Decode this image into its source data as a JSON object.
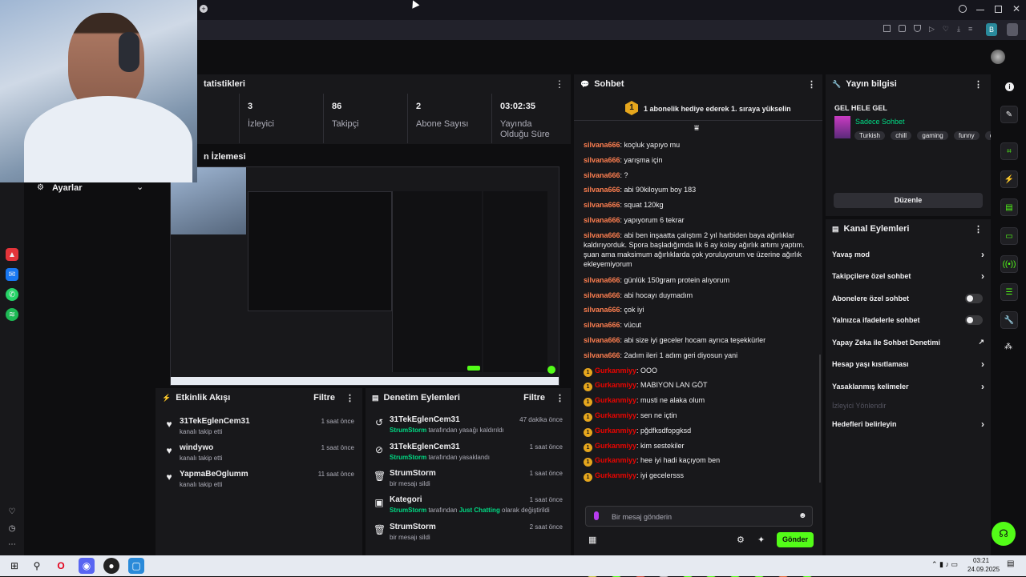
{
  "dashboard": {
    "stats_title": "tatistikleri",
    "stats": [
      {
        "value": "3",
        "label": "İzleyici"
      },
      {
        "value": "86",
        "label": "Takipçi"
      },
      {
        "value": "2",
        "label": "Abone Sayısı"
      },
      {
        "value": "03:02:35",
        "label": "Yayında Olduğu Süre"
      }
    ],
    "preview_title": "n İzlemesi",
    "settings_label": "Ayarlar",
    "activity": {
      "title": "Etkinlik Akışı",
      "filter": "Filtre",
      "items": [
        {
          "name": "31TekEglenCem31",
          "sub": "kanalı takip etti",
          "time": "1 saat önce"
        },
        {
          "name": "windywo",
          "sub": "kanalı takip etti",
          "time": "1 saat önce"
        },
        {
          "name": "YapmaBeOglumm",
          "sub": "kanalı takip etti",
          "time": "11 saat önce"
        }
      ]
    },
    "moderation": {
      "title": "Denetim Eylemleri",
      "filter": "Filtre",
      "items": [
        {
          "name": "31TekEglenCem31",
          "actor": "StrumStorm",
          "rest": " tarafından yasağı kaldırıldı",
          "time": "47 dakika önce"
        },
        {
          "name": "31TekEglenCem31",
          "actor": "StrumStorm",
          "rest": " tarafından yasaklandı",
          "time": "1 saat önce"
        },
        {
          "name": "StrumStorm",
          "actor": "",
          "rest": "bir mesajı sildi",
          "time": "1 saat önce"
        },
        {
          "name": "Kategori",
          "actor": "StrumStorm",
          "rest": " tarafından ",
          "extra": "Just Chatting",
          "rest2": " olarak değiştirildi",
          "time": "1 saat önce"
        },
        {
          "name": "StrumStorm",
          "actor": "",
          "rest": "bir mesajı sildi",
          "time": "2 saat önce"
        }
      ]
    }
  },
  "chat": {
    "title": "Sohbet",
    "hype": "1 abonelik hediye ederek 1. sıraya yükselin",
    "hype_rank": "1",
    "messages": [
      {
        "user": "silvana666",
        "text": ": koçluk yapıyo mu",
        "badge": false
      },
      {
        "user": "silvana666",
        "text": ": yarışma için",
        "badge": false
      },
      {
        "user": "silvana666",
        "text": ": ?",
        "badge": false
      },
      {
        "user": "silvana666",
        "text": ": abi 90kiloyum boy 183",
        "badge": false
      },
      {
        "user": "silvana666",
        "text": ": squat 120kg",
        "badge": false
      },
      {
        "user": "silvana666",
        "text": ": yapıyorum 6 tekrar",
        "badge": false
      },
      {
        "user": "silvana666",
        "text": ": abi ben inşaatta çalıştım 2 yıl harbiden baya ağırlıklar kaldırıyorduk. Spora başladığımda lik 6 ay kolay ağırlık artımı yaptım. şuan ama maksimum ağırlıklarda çok yoruluyorum ve üzerine ağırlık ekleyemiyorum",
        "badge": false
      },
      {
        "user": "silvana666",
        "text": ": günlük 150gram protein alıyorum",
        "badge": false
      },
      {
        "user": "silvana666",
        "text": ": abi hocayı duymadım",
        "badge": false
      },
      {
        "user": "silvana666",
        "text": ": çok iyi",
        "badge": false
      },
      {
        "user": "silvana666",
        "text": ": vücut",
        "badge": false
      },
      {
        "user": "silvana666",
        "text": ": abi size iyi geceler hocam ayrıca teşekkürler",
        "badge": false
      },
      {
        "user": "silvana666",
        "text": ": 2adım ileri 1 adım geri diyosun yani",
        "badge": false
      },
      {
        "user": "Gurkanmiyy",
        "text": ": OOO",
        "badge": true
      },
      {
        "user": "Gurkanmiyy",
        "text": ": MABIYON LAN GÖT",
        "badge": true
      },
      {
        "user": "Gurkanmiyy",
        "text": ": musti ne alaka olum",
        "badge": true
      },
      {
        "user": "Gurkanmiyy",
        "text": ": sen ne içtin",
        "badge": true
      },
      {
        "user": "Gurkanmiyy",
        "text": ": pğdfksdfopgksd",
        "badge": true
      },
      {
        "user": "Gurkanmiyy",
        "text": ": kim sestekiler",
        "badge": true
      },
      {
        "user": "Gurkanmiyy",
        "text": ": hee iyi hadi kaçıyom ben",
        "badge": true
      },
      {
        "user": "Gurkanmiyy",
        "text": ": iyi gecelersss",
        "badge": true
      }
    ],
    "input_placeholder": "Bir mesaj gönderin",
    "send_label": "Gönder"
  },
  "stream_info": {
    "title": "Yayın bilgisi",
    "stream_title": "GEL HELE GEL",
    "category": "Sadece Sohbet",
    "tags": [
      "Turkish",
      "chill",
      "gaming",
      "funny",
      "de"
    ],
    "edit_label": "Düzenle"
  },
  "channel_actions": {
    "title": "Kanal Eylemleri",
    "items": [
      {
        "label": "Yavaş mod",
        "control": "chevron"
      },
      {
        "label": "Takipçilere özel sohbet",
        "control": "chevron"
      },
      {
        "label": "Abonelere özel sohbet",
        "control": "toggle"
      },
      {
        "label": "Yalnızca ifadelerle sohbet",
        "control": "toggle"
      },
      {
        "label": "Yapay Zeka ile Sohbet Denetimi",
        "control": "external"
      },
      {
        "label": "Hesap yaşı kısıtlaması",
        "control": "chevron"
      },
      {
        "label": "Yasaklanmış kelimeler",
        "control": "chevron"
      },
      {
        "label": "İzleyici Yönlendir",
        "control": "disabled"
      },
      {
        "label": "Hedefleri belirleyin",
        "control": "chevron"
      }
    ]
  },
  "taskbar": {
    "time": "03:21",
    "date": "24.09.2025"
  },
  "colors": {
    "accent": "#53fc18",
    "panel": "#18181b",
    "bg": "#0e0e10"
  }
}
